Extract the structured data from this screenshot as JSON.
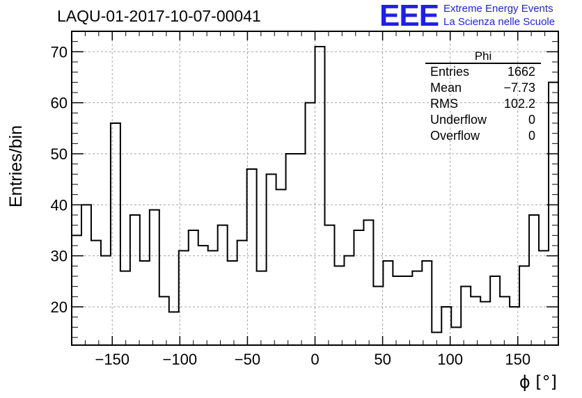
{
  "header": {
    "title": "LAQU-01-2017-10-07-00041",
    "logo_mark": "EEE",
    "logo_line1": "Extreme Energy Events",
    "logo_line2": "La Scienza nelle Scuole"
  },
  "stats_box": {
    "title": "Phi",
    "rows": [
      {
        "label": "Entries",
        "value": "1662"
      },
      {
        "label": "Mean",
        "value": "−7.73"
      },
      {
        "label": "RMS",
        "value": "102.2"
      },
      {
        "label": "Underflow",
        "value": "0"
      },
      {
        "label": "Overflow",
        "value": "0"
      }
    ]
  },
  "colors": {
    "line": "#000000",
    "grid": "#a6a6a6",
    "logo": "#1f1fe6"
  },
  "chart_data": {
    "type": "bar",
    "style": "step-histogram",
    "title": "LAQU-01-2017-10-07-00041",
    "xlabel": "ϕ [°]",
    "ylabel": "Entries/bin",
    "xlim": [
      -180,
      180
    ],
    "ylim": [
      12.5,
      74
    ],
    "bin_width": 7.2,
    "grid": true,
    "x_ticks": [
      -150,
      -100,
      -50,
      0,
      50,
      100,
      150
    ],
    "x_tick_labels": [
      "−150",
      "−100",
      "−50",
      "0",
      "50",
      "100",
      "150"
    ],
    "y_ticks": [
      20,
      30,
      40,
      50,
      60,
      70
    ],
    "y_tick_labels": [
      "20",
      "30",
      "40",
      "50",
      "60",
      "70"
    ],
    "series": [
      {
        "bin_edges": [
          -180,
          -172.8,
          -165.6,
          -158.4,
          -151.2,
          -144,
          -136.8,
          -129.6,
          -122.4,
          -115.2,
          -108,
          -100.8,
          -93.6,
          -86.4,
          -79.2,
          -72,
          -64.8,
          -57.6,
          -50.4,
          -43.2,
          -36,
          -28.8,
          -21.6,
          -14.4,
          -7.2,
          0,
          7.2,
          14.4,
          21.6,
          28.8,
          36,
          43.2,
          50.4,
          57.6,
          64.8,
          72,
          79.2,
          86.4,
          93.6,
          100.8,
          108,
          115.2,
          122.4,
          129.6,
          136.8,
          144,
          151.2,
          158.4,
          165.6,
          172.8,
          180
        ],
        "values": [
          34,
          40,
          33,
          30,
          56,
          27,
          38,
          29,
          39,
          22,
          19,
          31,
          35,
          32,
          31,
          36,
          29,
          33,
          47,
          27,
          46,
          43,
          50,
          50,
          60,
          71,
          36,
          28,
          30,
          35,
          37,
          24,
          29,
          26,
          26,
          27,
          29,
          15,
          20,
          16,
          24,
          22,
          21,
          26,
          22,
          20,
          28,
          38,
          31,
          64
        ]
      }
    ]
  }
}
